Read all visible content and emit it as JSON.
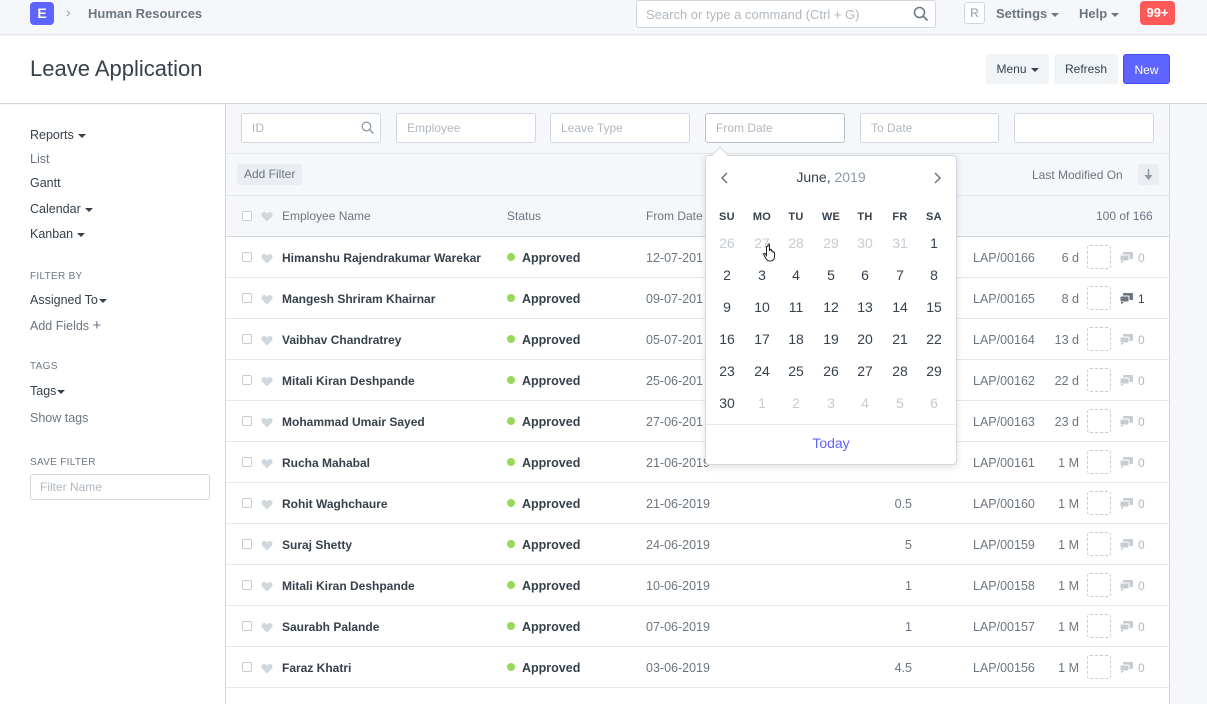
{
  "navbar": {
    "logo_letter": "E",
    "breadcrumb": "Human Resources",
    "search_placeholder": "Search or type a command (Ctrl + G)",
    "avatar_letter": "R",
    "settings_label": "Settings",
    "help_label": "Help",
    "notifications": "99+"
  },
  "page": {
    "title": "Leave Application",
    "menu_label": "Menu",
    "refresh_label": "Refresh",
    "new_label": "New"
  },
  "sidebar": {
    "reports": "Reports",
    "list": "List",
    "gantt": "Gantt",
    "calendar": "Calendar",
    "kanban": "Kanban",
    "filter_by_heading": "FILTER BY",
    "assigned_to": "Assigned To",
    "add_fields": "Add Fields",
    "tags_heading": "TAGS",
    "tags": "Tags",
    "show_tags": "Show tags",
    "save_filter_heading": "SAVE FILTER",
    "filter_name_placeholder": "Filter Name"
  },
  "filters": {
    "id_placeholder": "ID",
    "employee_placeholder": "Employee",
    "leave_type_placeholder": "Leave Type",
    "from_date_placeholder": "From Date",
    "to_date_placeholder": "To Date",
    "add_filter": "Add Filter",
    "sort_label": "Last Modified On"
  },
  "table": {
    "headers": {
      "employee_name": "Employee Name",
      "status": "Status",
      "from_date": "From Date",
      "count": "100 of 166"
    },
    "rows": [
      {
        "name": "Himanshu Rajendrakumar Warekar",
        "status": "Approved",
        "from_date": "12-07-201",
        "days": "",
        "id": "LAP/00166",
        "modified": "6 d",
        "comments": "0"
      },
      {
        "name": "Mangesh Shriram Khairnar",
        "status": "Approved",
        "from_date": "09-07-201",
        "days": "",
        "id": "LAP/00165",
        "modified": "8 d",
        "comments": "1"
      },
      {
        "name": "Vaibhav Chandratrey",
        "status": "Approved",
        "from_date": "05-07-201",
        "days": "",
        "id": "LAP/00164",
        "modified": "13 d",
        "comments": "0"
      },
      {
        "name": "Mitali Kiran Deshpande",
        "status": "Approved",
        "from_date": "25-06-201",
        "days": "",
        "id": "LAP/00162",
        "modified": "22 d",
        "comments": "0"
      },
      {
        "name": "Mohammad Umair Sayed",
        "status": "Approved",
        "from_date": "27-06-201",
        "days": "",
        "id": "LAP/00163",
        "modified": "23 d",
        "comments": "0"
      },
      {
        "name": "Rucha Mahabal",
        "status": "Approved",
        "from_date": "21-06-2019",
        "days": "",
        "id": "LAP/00161",
        "modified": "1 M",
        "comments": "0"
      },
      {
        "name": "Rohit Waghchaure",
        "status": "Approved",
        "from_date": "21-06-2019",
        "days": "0.5",
        "id": "LAP/00160",
        "modified": "1 M",
        "comments": "0"
      },
      {
        "name": "Suraj Shetty",
        "status": "Approved",
        "from_date": "24-06-2019",
        "days": "5",
        "id": "LAP/00159",
        "modified": "1 M",
        "comments": "0"
      },
      {
        "name": "Mitali Kiran Deshpande",
        "status": "Approved",
        "from_date": "10-06-2019",
        "days": "1",
        "id": "LAP/00158",
        "modified": "1 M",
        "comments": "0"
      },
      {
        "name": "Saurabh Palande",
        "status": "Approved",
        "from_date": "07-06-2019",
        "days": "1",
        "id": "LAP/00157",
        "modified": "1 M",
        "comments": "0"
      },
      {
        "name": "Faraz Khatri",
        "status": "Approved",
        "from_date": "03-06-2019",
        "days": "4.5",
        "id": "LAP/00156",
        "modified": "1 M",
        "comments": "0"
      }
    ]
  },
  "datepicker": {
    "month": "June,",
    "year": "2019",
    "weekdays": [
      "SU",
      "MO",
      "TU",
      "WE",
      "TH",
      "FR",
      "SA"
    ],
    "weeks": [
      [
        {
          "d": "26",
          "o": true
        },
        {
          "d": "27",
          "o": true
        },
        {
          "d": "28",
          "o": true
        },
        {
          "d": "29",
          "o": true
        },
        {
          "d": "30",
          "o": true
        },
        {
          "d": "31",
          "o": true
        },
        {
          "d": "1",
          "o": false
        }
      ],
      [
        {
          "d": "2",
          "o": false
        },
        {
          "d": "3",
          "o": false
        },
        {
          "d": "4",
          "o": false
        },
        {
          "d": "5",
          "o": false
        },
        {
          "d": "6",
          "o": false
        },
        {
          "d": "7",
          "o": false
        },
        {
          "d": "8",
          "o": false
        }
      ],
      [
        {
          "d": "9",
          "o": false
        },
        {
          "d": "10",
          "o": false
        },
        {
          "d": "11",
          "o": false
        },
        {
          "d": "12",
          "o": false
        },
        {
          "d": "13",
          "o": false
        },
        {
          "d": "14",
          "o": false
        },
        {
          "d": "15",
          "o": false
        }
      ],
      [
        {
          "d": "16",
          "o": false
        },
        {
          "d": "17",
          "o": false
        },
        {
          "d": "18",
          "o": false
        },
        {
          "d": "19",
          "o": false
        },
        {
          "d": "20",
          "o": false
        },
        {
          "d": "21",
          "o": false
        },
        {
          "d": "22",
          "o": false
        }
      ],
      [
        {
          "d": "23",
          "o": false
        },
        {
          "d": "24",
          "o": false
        },
        {
          "d": "25",
          "o": false
        },
        {
          "d": "26",
          "o": false
        },
        {
          "d": "27",
          "o": false
        },
        {
          "d": "28",
          "o": false
        },
        {
          "d": "29",
          "o": false
        }
      ],
      [
        {
          "d": "30",
          "o": false
        },
        {
          "d": "1",
          "o": true
        },
        {
          "d": "2",
          "o": true
        },
        {
          "d": "3",
          "o": true
        },
        {
          "d": "4",
          "o": true
        },
        {
          "d": "5",
          "o": true
        },
        {
          "d": "6",
          "o": true
        }
      ]
    ],
    "today_label": "Today"
  },
  "colors": {
    "primary": "#5e64ff",
    "approved": "#98d85b",
    "notification": "#ff5858"
  }
}
